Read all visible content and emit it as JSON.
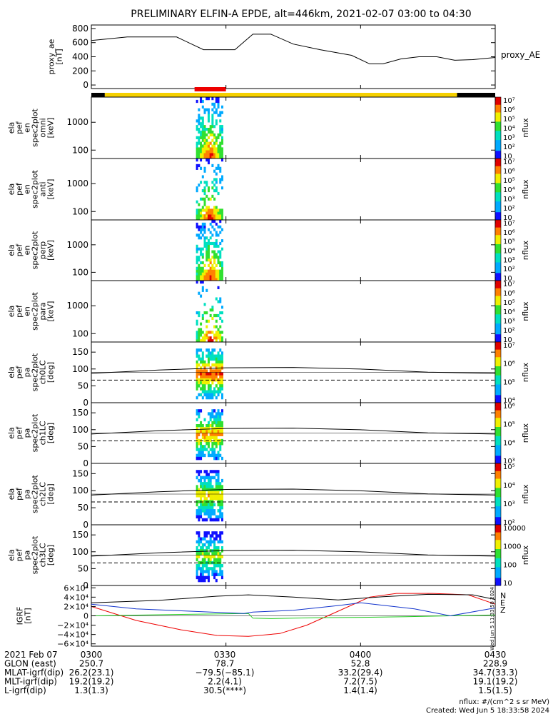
{
  "title": "PRELIMINARY ELFIN-A EPDE, alt=446km, 2021-02-07 03:00 to 04:30",
  "colors": {
    "fast_bar": "#f5d000",
    "science_bar": "#ee0000",
    "no_data_bar": "#000000",
    "igrf_n": "#ee0000",
    "igrf_e": "#22cc22",
    "igrf_z": "#1133cc"
  },
  "chart_data": [
    {
      "type": "line",
      "id": "proxy_ae",
      "ylabel": [
        "proxy_ae",
        "[nT]"
      ],
      "right_label": "proxy_AE",
      "ylim": [
        -50,
        850
      ],
      "yticks": [
        0,
        200,
        400,
        600,
        800
      ],
      "xlim_min": [
        0,
        90
      ],
      "x": [
        0,
        8,
        19,
        25,
        32,
        36,
        40,
        45,
        51,
        58,
        62,
        65,
        69,
        73,
        77,
        81,
        85,
        90
      ],
      "values": [
        630,
        680,
        680,
        500,
        500,
        720,
        720,
        580,
        500,
        420,
        300,
        300,
        370,
        400,
        400,
        350,
        360,
        390
      ]
    },
    {
      "type": "bar",
      "id": "mode_bar",
      "segments": [
        {
          "start": 0,
          "end": 3,
          "kind": "no_data"
        },
        {
          "start": 3,
          "end": 81.5,
          "kind": "fast"
        },
        {
          "start": 81.5,
          "end": 90,
          "kind": "no_data"
        },
        {
          "start": 23,
          "end": 30,
          "kind": "science"
        }
      ]
    },
    {
      "type": "heatmap",
      "id": "en_omni",
      "ylabel": [
        "ela",
        "pef",
        "en",
        "spec2plot",
        "omni",
        "[keV]"
      ],
      "scale": "log",
      "ylim": [
        50,
        8000
      ],
      "yticks": [
        100,
        1000
      ],
      "burst_min": [
        23,
        30
      ],
      "colorbar": {
        "label": "nflux",
        "ticks": [
          "10",
          "10²",
          "10³",
          "10⁴",
          "10⁵",
          "10⁶",
          "10⁷"
        ]
      }
    },
    {
      "type": "heatmap",
      "id": "en_anti",
      "ylabel": [
        "ela",
        "pef",
        "en",
        "spec2plot",
        "anti",
        "[keV]"
      ],
      "scale": "log",
      "ylim": [
        50,
        8000
      ],
      "yticks": [
        100,
        1000
      ],
      "burst_min": [
        23,
        30
      ],
      "colorbar": {
        "label": "nflux",
        "ticks": [
          "10",
          "10²",
          "10³",
          "10⁴",
          "10⁵",
          "10⁶",
          "10⁷"
        ]
      }
    },
    {
      "type": "heatmap",
      "id": "en_perp",
      "ylabel": [
        "ela",
        "pef",
        "en",
        "spec2plot",
        "perp",
        "[keV]"
      ],
      "scale": "log",
      "ylim": [
        50,
        8000
      ],
      "yticks": [
        100,
        1000
      ],
      "burst_min": [
        23,
        30
      ],
      "colorbar": {
        "label": "nflux",
        "ticks": [
          "10",
          "10²",
          "10³",
          "10⁴",
          "10⁵",
          "10⁶",
          "10⁷"
        ]
      }
    },
    {
      "type": "heatmap",
      "id": "en_para",
      "ylabel": [
        "ela",
        "pef",
        "en",
        "spec2plot",
        "para",
        "[keV]"
      ],
      "scale": "log",
      "ylim": [
        50,
        8000
      ],
      "yticks": [
        100,
        1000
      ],
      "burst_min": [
        23,
        30
      ],
      "colorbar": {
        "label": "nflux",
        "ticks": [
          "10",
          "10²",
          "10³",
          "10⁴",
          "10⁵",
          "10⁶",
          "10⁷"
        ]
      }
    },
    {
      "type": "heatmap",
      "id": "pa_ch0",
      "ylabel": [
        "ela",
        "pef",
        "pa",
        "spec2plot",
        "ch0LC",
        "[deg]"
      ],
      "ylim": [
        0,
        180
      ],
      "yticks": [
        0,
        50,
        100,
        150
      ],
      "burst_min": [
        23,
        30
      ],
      "colorbar": {
        "label": "nflux",
        "ticks": [
          "10⁴",
          "10⁵",
          "10⁶",
          "10⁷"
        ]
      }
    },
    {
      "type": "heatmap",
      "id": "pa_ch1",
      "ylabel": [
        "ela",
        "pef",
        "pa",
        "spec2plot",
        "ch1LC",
        "[deg]"
      ],
      "ylim": [
        0,
        180
      ],
      "yticks": [
        0,
        50,
        100,
        150
      ],
      "burst_min": [
        23,
        30
      ],
      "colorbar": {
        "label": "nflux",
        "ticks": [
          "10³",
          "10⁴",
          "10⁵",
          "10⁶"
        ]
      }
    },
    {
      "type": "heatmap",
      "id": "pa_ch2",
      "ylabel": [
        "ela",
        "pef",
        "pa",
        "spec2plot",
        "ch2LC",
        "[deg]"
      ],
      "ylim": [
        0,
        180
      ],
      "yticks": [
        0,
        50,
        100,
        150
      ],
      "burst_min": [
        23,
        30
      ],
      "colorbar": {
        "label": "nflux",
        "ticks": [
          "10²",
          "10³",
          "10⁴",
          "10⁵"
        ]
      }
    },
    {
      "type": "heatmap",
      "id": "pa_ch3",
      "ylabel": [
        "ela",
        "pef",
        "pa",
        "spec2plot",
        "ch3LC",
        "[deg]"
      ],
      "ylim": [
        0,
        180
      ],
      "yticks": [
        0,
        50,
        100,
        150
      ],
      "burst_min": [
        23,
        30
      ],
      "colorbar": {
        "label": "nflux",
        "ticks": [
          "10",
          "100",
          "1000",
          "10000"
        ]
      }
    },
    {
      "type": "line",
      "id": "igrf",
      "ylabel": [
        "IGRF",
        "[nT]"
      ],
      "ylim": [
        -65000,
        65000
      ],
      "yticks": [
        "6×10⁴",
        "4×10⁴",
        "2×10⁴",
        "0",
        "−2×10⁴",
        "−4×10⁴",
        "−6×10⁴"
      ],
      "ytick_values": [
        60000,
        40000,
        20000,
        0,
        -20000,
        -40000,
        -60000
      ],
      "series": [
        {
          "name": "N",
          "color": "#ee0000",
          "x": [
            0,
            10,
            20,
            28,
            35,
            42,
            48,
            55,
            62,
            68,
            76,
            84,
            90
          ],
          "values": [
            20000,
            -10000,
            -30000,
            -42000,
            -44000,
            -38000,
            -20000,
            10000,
            40000,
            48000,
            48000,
            45000,
            25000
          ]
        },
        {
          "name": "E",
          "color": "#22cc22",
          "x": [
            0,
            20,
            35,
            36,
            40,
            50,
            62,
            70,
            80,
            90
          ],
          "values": [
            0,
            3000,
            5000,
            -5000,
            -6000,
            -4000,
            -3000,
            -2000,
            0,
            2000
          ]
        },
        {
          "name": "Z",
          "color": "#1133cc",
          "x": [
            0,
            10,
            22,
            34,
            36,
            45,
            55,
            60,
            72,
            80,
            90
          ],
          "values": [
            25000,
            15000,
            10000,
            5000,
            8000,
            12000,
            22000,
            28000,
            15000,
            0,
            17000
          ]
        },
        {
          "name": "",
          "color": "#000000",
          "x": [
            0,
            15,
            28,
            35,
            45,
            55,
            65,
            75,
            85,
            90
          ],
          "values": [
            28000,
            33000,
            42000,
            45000,
            40000,
            34000,
            41000,
            46000,
            45000,
            35000
          ]
        }
      ]
    }
  ],
  "xaxis": {
    "tick_labels": [
      "0300",
      "0330",
      "0400",
      "0430"
    ],
    "tick_min": [
      0,
      30,
      60,
      90
    ]
  },
  "timestamp_vertical": "Wed Jun  5 11:33:58 2024",
  "footer": {
    "rows": [
      {
        "label": "2021 Feb 07",
        "values": [
          "0300",
          "0330",
          "0400",
          "0430"
        ]
      },
      {
        "label": "GLON (east)",
        "values": [
          "250.7",
          "78.7",
          "52.8",
          "228.9"
        ]
      },
      {
        "label": "MLAT-igrf(dip)",
        "values": [
          "26.2(23.1)",
          "−79.5(−85.1)",
          "33.2(29.4)",
          "34.7(33.3)"
        ]
      },
      {
        "label": "MLT-igrf(dip)",
        "values": [
          "19.2(19.2)",
          "2.2(4.1)",
          "7.2(7.5)",
          "19.1(19.2)"
        ]
      },
      {
        "label": "L-igrf(dip)",
        "values": [
          "1.3(1.3)",
          "30.5(****)",
          "1.4(1.4)",
          "1.5(1.5)"
        ]
      }
    ],
    "units_note": "nflux: #/(cm^2 s sr MeV)",
    "created": "Created: Wed Jun  5 18:33:58 2024"
  }
}
